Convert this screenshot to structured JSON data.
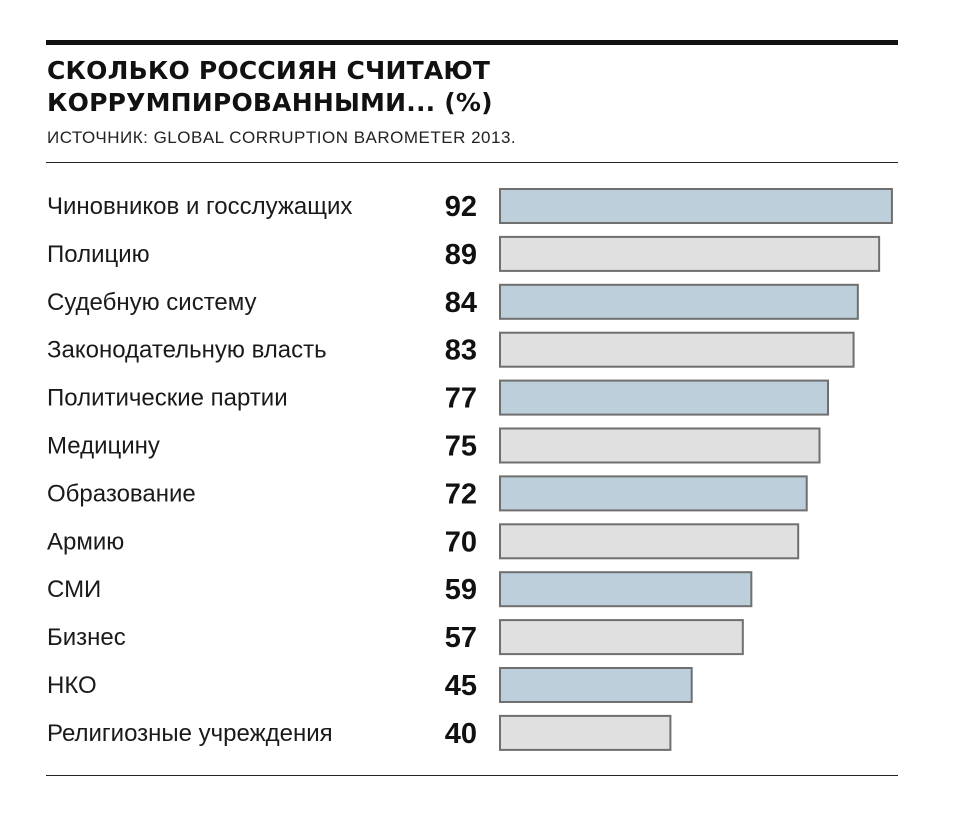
{
  "header": {
    "title_line1": "СКОЛЬКО РОССИЯН СЧИТАЮТ",
    "title_line2": "КОРРУМПИРОВАННЫМИ... (%)",
    "source": "ИСТОЧНИК: GLOBAL CORRUPTION BAROMETER 2013."
  },
  "colors": {
    "bar_odd": "#bccfda",
    "bar_even": "#e0e0e0",
    "bar_border": "#6f6f6f",
    "rules": "#111111"
  },
  "chart_data": {
    "type": "bar",
    "orientation": "horizontal",
    "title": "СКОЛЬКО РОССИЯН СЧИТАЮТ КОРРУМПИРОВАННЫМИ... (%)",
    "categories": [
      "Чиновников и госслужащих",
      "Полицию",
      "Судебную систему",
      "Законодательную власть",
      "Политические партии",
      "Медицину",
      "Образование",
      "Армию",
      "СМИ",
      "Бизнес",
      "НКО",
      "Религиозные учреждения"
    ],
    "values": [
      92,
      89,
      84,
      83,
      77,
      75,
      72,
      70,
      59,
      57,
      45,
      40
    ],
    "xlim": [
      0,
      100
    ],
    "grid": false,
    "legend": "none",
    "data_labels": true
  }
}
